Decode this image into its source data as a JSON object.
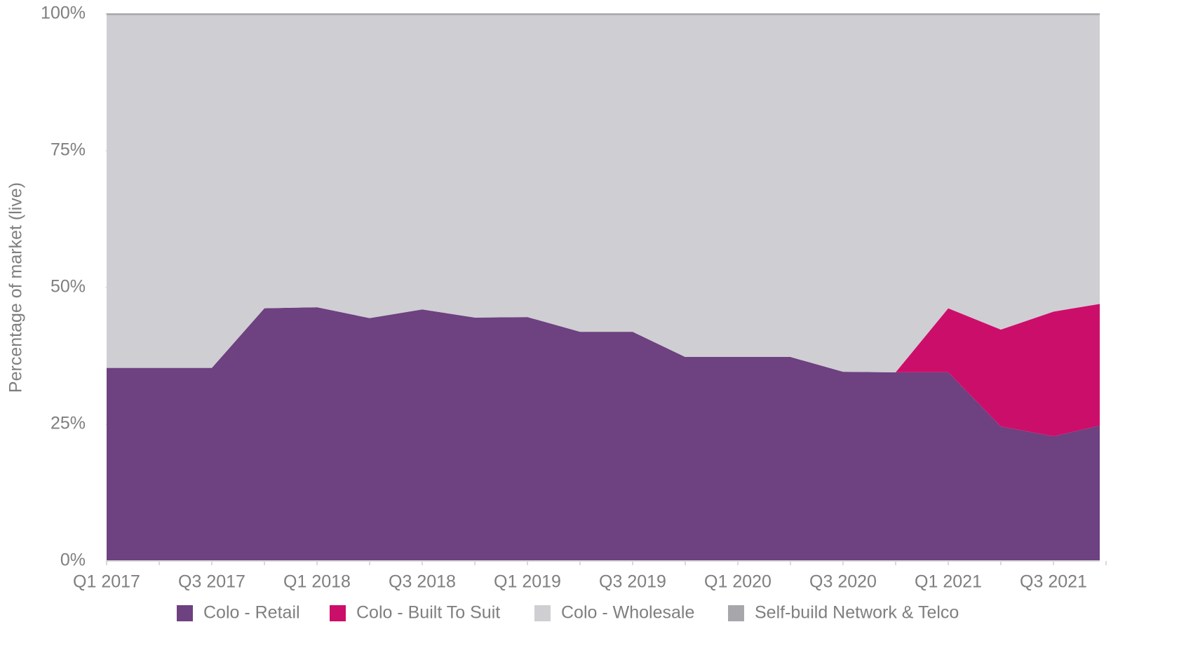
{
  "chart_data": {
    "type": "stacked_area",
    "y_axis_label": "Percentage of market (live)",
    "categories": [
      "Q1 2017",
      null,
      "Q3 2017",
      null,
      "Q1 2018",
      null,
      "Q3 2018",
      null,
      "Q1 2019",
      null,
      "Q3 2019",
      null,
      "Q1 2020",
      null,
      "Q3 2020",
      null,
      "Q1 2021",
      null,
      "Q3 2021",
      null
    ],
    "series": [
      {
        "name": "Colo - Retail",
        "color": "#6e4180",
        "values": [
          35.3,
          35.3,
          35.3,
          46.2,
          46.4,
          44.4,
          46.0,
          44.5,
          44.6,
          41.9,
          41.9,
          37.3,
          37.3,
          37.3,
          34.6,
          34.5,
          34.5,
          24.6,
          22.8,
          25.0
        ]
      },
      {
        "name": "Colo - Built To Suit",
        "color": "#cc0e6b",
        "values": [
          0,
          0,
          0,
          0,
          0,
          0,
          0,
          0,
          0,
          0,
          0,
          0,
          0,
          0,
          0,
          0,
          11.7,
          17.7,
          22.8,
          22.2
        ]
      },
      {
        "name": "Colo - Wholesale",
        "color": "#cfced3",
        "values": [
          64.5,
          64.5,
          64.5,
          53.6,
          53.4,
          55.4,
          53.8,
          55.3,
          55.2,
          57.9,
          57.9,
          62.5,
          62.5,
          62.5,
          65.2,
          65.3,
          53.6,
          57.5,
          54.2,
          52.6
        ]
      },
      {
        "name": "Self-build Network & Telco",
        "color": "#a7a6ab",
        "values": [
          0.2,
          0.2,
          0.2,
          0.2,
          0.2,
          0.2,
          0.2,
          0.2,
          0.2,
          0.2,
          0.2,
          0.2,
          0.2,
          0.2,
          0.2,
          0.2,
          0.2,
          0.2,
          0.2,
          0.2
        ]
      }
    ],
    "ylim": [
      0,
      100
    ],
    "yticks": [
      {
        "value": 0,
        "label": "0%"
      },
      {
        "value": 25,
        "label": "25%"
      },
      {
        "value": 50,
        "label": "50%"
      },
      {
        "value": 75,
        "label": "75%"
      },
      {
        "value": 100,
        "label": "100%"
      }
    ],
    "legend": "bottom"
  }
}
